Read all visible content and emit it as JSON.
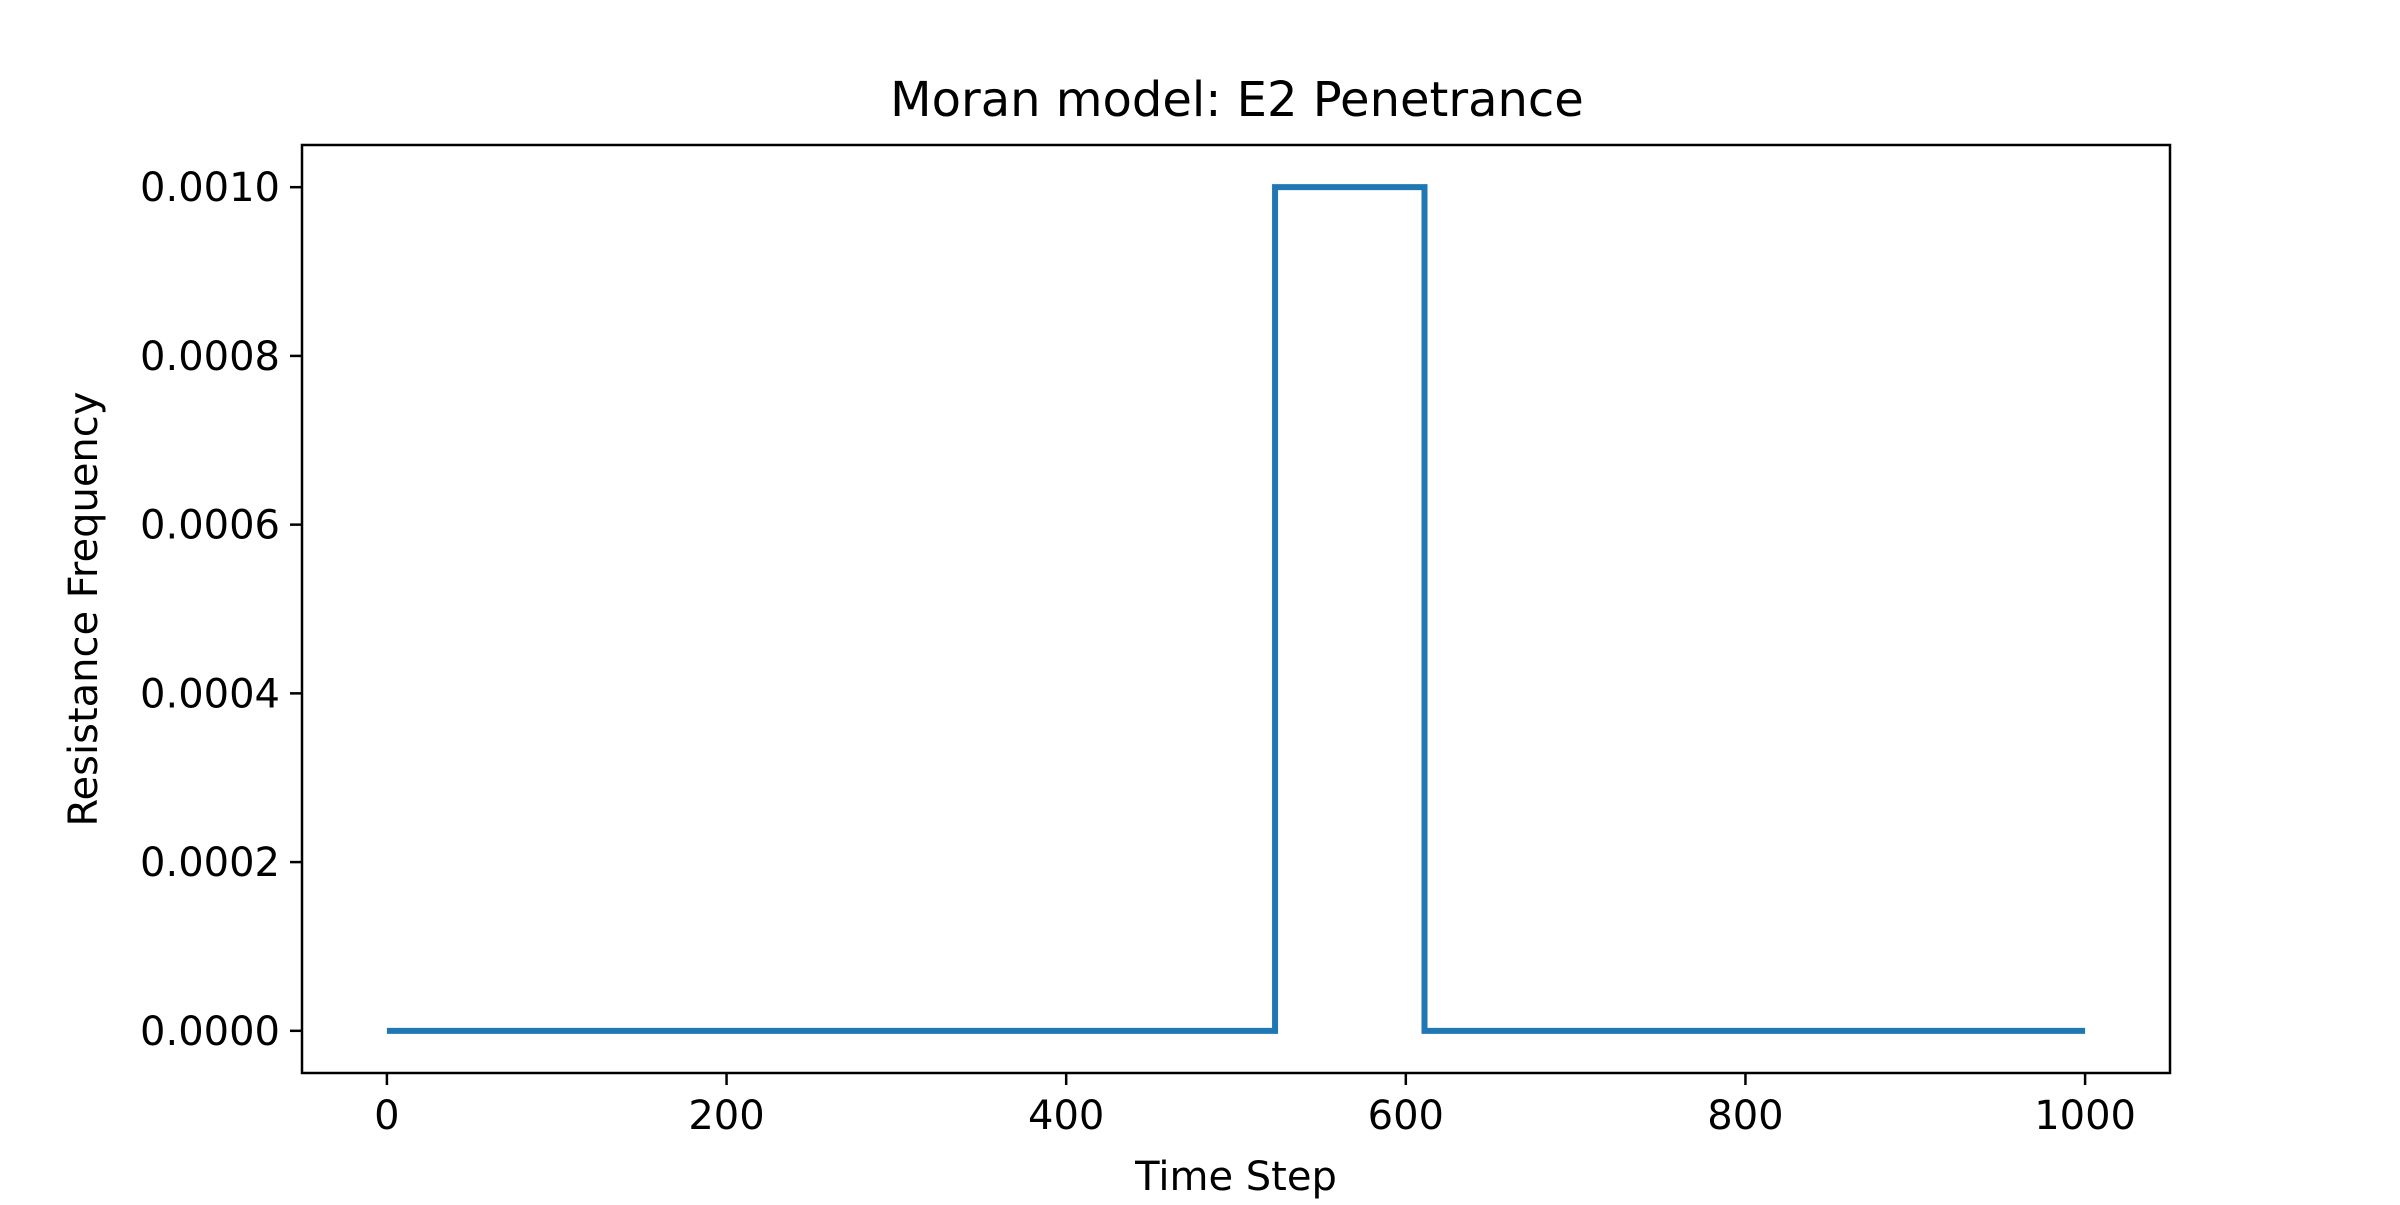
{
  "chart_data": {
    "type": "line",
    "title": "Moran model: E2 Penetrance",
    "xlabel": "Time Step",
    "ylabel": "Resistance Frequency",
    "xlim": [
      -50,
      1050
    ],
    "ylim": [
      -5e-05,
      0.00105
    ],
    "x_ticks": [
      0,
      200,
      400,
      600,
      800,
      1000
    ],
    "x_tick_labels": [
      "0",
      "200",
      "400",
      "600",
      "800",
      "1000"
    ],
    "y_ticks": [
      0.0,
      0.0002,
      0.0004,
      0.0006,
      0.0008,
      0.001
    ],
    "y_tick_labels": [
      "0.0000",
      "0.0002",
      "0.0004",
      "0.0006",
      "0.0008",
      "0.0010"
    ],
    "grid": false,
    "series": [
      {
        "color": "#1f77b4",
        "x": [
          0,
          523,
          523,
          611,
          611,
          1000
        ],
        "y": [
          0.0,
          0.0,
          0.001,
          0.001,
          0.0,
          0.0
        ]
      }
    ]
  }
}
